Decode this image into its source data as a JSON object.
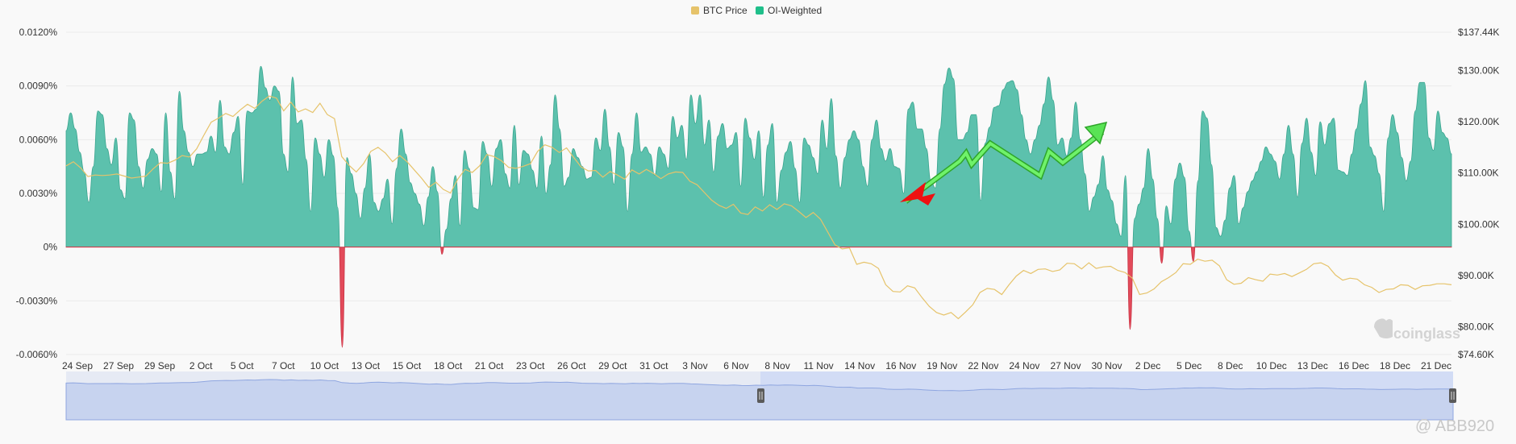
{
  "legend": [
    {
      "label": "BTC Price",
      "color": "#e6c36a"
    },
    {
      "label": "OI-Weighted",
      "color": "#1fbf8a"
    }
  ],
  "watermark": "coinglass",
  "credit": "@ ABB920",
  "chart_data": {
    "type": "area",
    "title": "",
    "left_axis": {
      "ticks": [
        "0.0120%",
        "0.0090%",
        "0.0060%",
        "0.0030%",
        "0%",
        "-0.0030%",
        "-0.0060%"
      ],
      "values": [
        0.012,
        0.009,
        0.006,
        0.003,
        0,
        -0.003,
        -0.006
      ],
      "range": [
        -0.006,
        0.012
      ]
    },
    "right_axis": {
      "ticks": [
        "$137.44K",
        "$130.00K",
        "$120.00K",
        "$110.00K",
        "$100.00K",
        "$90.00K",
        "$80.00K",
        "$74.60K"
      ],
      "values": [
        137.44,
        130,
        120,
        110,
        100,
        90,
        80,
        74.6
      ],
      "range": [
        74.6,
        137.44
      ]
    },
    "x_ticks": [
      "24 Sep",
      "27 Sep",
      "29 Sep",
      "2 Oct",
      "5 Oct",
      "7 Oct",
      "10 Oct",
      "13 Oct",
      "15 Oct",
      "18 Oct",
      "21 Oct",
      "23 Oct",
      "26 Oct",
      "29 Oct",
      "31 Oct",
      "3 Nov",
      "6 Nov",
      "8 Nov",
      "11 Nov",
      "14 Nov",
      "16 Nov",
      "19 Nov",
      "22 Nov",
      "24 Nov",
      "27 Nov",
      "30 Nov",
      "2 Dec",
      "5 Dec",
      "8 Dec",
      "10 Dec",
      "13 Dec",
      "16 Dec",
      "18 Dec",
      "21 Dec"
    ],
    "series": [
      {
        "name": "OI-Weighted",
        "kind": "area",
        "positive_color": "#5cc1ad",
        "negative_color": "#e34a5a",
        "values": [
          0.0065,
          0.0075,
          0.0066,
          0.0053,
          0.0042,
          0.0025,
          0.0045,
          0.0076,
          0.0074,
          0.0055,
          0.0046,
          0.0061,
          0.0032,
          0.0027,
          0.0075,
          0.0071,
          0.0045,
          0.0033,
          0.0049,
          0.0055,
          0.0052,
          0.0031,
          0.0075,
          0.0042,
          0.0027,
          0.0087,
          0.0065,
          0.0053,
          0.0045,
          0.0052,
          0.0052,
          0.0053,
          0.0062,
          0.0053,
          0.0082,
          0.0056,
          0.0052,
          0.0064,
          0.0073,
          0.0035,
          0.0076,
          0.0075,
          0.0077,
          0.0101,
          0.0089,
          0.0082,
          0.009,
          0.0087,
          0.0052,
          0.0042,
          0.0095,
          0.0069,
          0.0071,
          0.0049,
          0.002,
          0.0061,
          0.0052,
          0.0039,
          0.006,
          0.0051,
          0.0022,
          -0.0056,
          0.005,
          0.0041,
          0.003,
          0.0016,
          0.0033,
          0.0052,
          0.0025,
          0.002,
          0.0027,
          0.0038,
          0.0013,
          0.0044,
          0.0066,
          0.0052,
          0.0036,
          0.003,
          0.0024,
          0.0012,
          0.0028,
          0.0045,
          0.0031,
          -0.0004,
          0.001,
          0.0027,
          0.004,
          0.0012,
          0.0054,
          0.0044,
          0.0022,
          0.0021,
          0.0059,
          0.0052,
          0.0034,
          0.0055,
          0.006,
          0.0041,
          0.0033,
          0.0068,
          0.0035,
          0.0054,
          0.0052,
          0.0043,
          0.0033,
          0.0062,
          0.003,
          0.0046,
          0.0085,
          0.0066,
          0.0034,
          0.0039,
          0.0055,
          0.005,
          0.0045,
          0.0038,
          0.0039,
          0.0061,
          0.0054,
          0.0077,
          0.0056,
          0.0035,
          0.0064,
          0.0056,
          0.002,
          0.0052,
          0.0075,
          0.0053,
          0.0056,
          0.0052,
          0.004,
          0.0056,
          0.0052,
          0.0044,
          0.0073,
          0.0061,
          0.0068,
          0.0049,
          0.0085,
          0.0069,
          0.0085,
          0.0057,
          0.0071,
          0.0042,
          0.0062,
          0.0069,
          0.0055,
          0.0057,
          0.0064,
          0.0034,
          0.0072,
          0.0061,
          0.0049,
          0.0065,
          0.0028,
          0.0057,
          0.0069,
          0.0025,
          0.0043,
          0.0053,
          0.0059,
          0.0044,
          0.0025,
          0.0061,
          0.0057,
          0.005,
          0.0041,
          0.0071,
          0.0055,
          0.0083,
          0.0051,
          0.0033,
          0.005,
          0.006,
          0.0065,
          0.006,
          0.0045,
          0.0034,
          0.006,
          0.0071,
          0.0055,
          0.0048,
          0.0055,
          0.0045,
          0.0044,
          0.003,
          0.0077,
          0.0081,
          0.0066,
          0.0066,
          0.0055,
          0.0037,
          0.0033,
          0.0066,
          0.0091,
          0.01,
          0.0094,
          0.006,
          0.006,
          0.0064,
          0.0074,
          0.0074,
          0.0026,
          0.0058,
          0.0067,
          0.0078,
          0.0079,
          0.0088,
          0.0092,
          0.0093,
          0.0088,
          0.0074,
          0.006,
          0.0052,
          0.006,
          0.0068,
          0.008,
          0.0095,
          0.0082,
          0.0057,
          0.0061,
          0.0051,
          0.0061,
          0.0081,
          0.006,
          0.0041,
          0.002,
          0.0028,
          0.0035,
          0.0051,
          0.0032,
          0.0026,
          0.0013,
          0.0006,
          0.004,
          -0.0046,
          0.0016,
          0.0024,
          0.0033,
          0.0055,
          0.0038,
          0.0016,
          -0.0009,
          0.0023,
          0.0013,
          0.0038,
          0.0047,
          0.0039,
          0.0009,
          -0.0008,
          0.0037,
          0.0076,
          0.0072,
          0.0046,
          0.0011,
          0.0006,
          0.0015,
          0.0033,
          0.004,
          0.0013,
          0.0022,
          0.0031,
          0.0037,
          0.0042,
          0.0048,
          0.0056,
          0.0052,
          0.0048,
          0.0038,
          0.0052,
          0.0068,
          0.0052,
          0.0028,
          0.0058,
          0.0072,
          0.0053,
          0.004,
          0.007,
          0.0057,
          0.0069,
          0.0072,
          0.0043,
          0.0042,
          0.004,
          0.0052,
          0.0066,
          0.008,
          0.0093,
          0.0056,
          0.0051,
          0.0041,
          0.002,
          0.0061,
          0.0074,
          0.0064,
          0.005,
          0.0037,
          0.0048,
          0.0076,
          0.0092,
          0.0092,
          0.0061,
          0.0054,
          0.0076,
          0.0064,
          0.0061,
          0.0052
        ]
      },
      {
        "name": "BTC Price",
        "kind": "line",
        "color": "#e6c36a",
        "values": [
          111.4,
          112.2,
          111.0,
          109.3,
          109.6,
          109.5,
          109.6,
          109.8,
          109.4,
          109.0,
          109.2,
          109.4,
          110.8,
          112.0,
          111.9,
          112.5,
          113.4,
          113.1,
          114.7,
          117.4,
          119.9,
          120.7,
          121.6,
          121.0,
          122.3,
          123.4,
          122.6,
          124.0,
          125.0,
          124.6,
          122.1,
          123.8,
          121.9,
          122.5,
          121.8,
          123.6,
          121.4,
          120.6,
          113.2,
          111.5,
          110.2,
          111.8,
          114.2,
          115.0,
          113.9,
          112.2,
          113.4,
          112.2,
          110.6,
          109.0,
          107.2,
          108.2,
          106.8,
          106.1,
          108.8,
          110.7,
          110.1,
          111.4,
          113.6,
          113.2,
          112.4,
          111.1,
          110.9,
          111.3,
          111.8,
          114.2,
          115.5,
          115.0,
          114.0,
          114.9,
          113.0,
          111.2,
          110.4,
          110.5,
          109.2,
          110.3,
          109.6,
          108.8,
          110.6,
          109.8,
          110.7,
          109.9,
          108.9,
          109.8,
          110.2,
          110.1,
          108.4,
          107.7,
          106.2,
          104.7,
          103.7,
          103.1,
          103.9,
          102.2,
          101.9,
          103.4,
          102.6,
          103.8,
          102.9,
          104.0,
          103.6,
          102.5,
          101.3,
          102.3,
          101.0,
          98.5,
          96.0,
          95.2,
          95.4,
          92.2,
          92.6,
          92.3,
          91.4,
          88.2,
          86.9,
          86.8,
          88.0,
          87.6,
          85.7,
          84.0,
          82.8,
          82.3,
          82.8,
          81.6,
          82.9,
          84.3,
          86.7,
          87.5,
          87.3,
          86.3,
          88.2,
          89.9,
          91.0,
          90.4,
          91.2,
          91.3,
          90.8,
          91.1,
          92.4,
          92.3,
          91.3,
          92.5,
          91.4,
          91.7,
          91.8,
          91.0,
          90.6,
          89.5,
          86.3,
          86.6,
          87.4,
          88.8,
          89.6,
          90.6,
          92.3,
          92.2,
          93.2,
          92.8,
          93.0,
          91.9,
          89.2,
          88.3,
          88.5,
          89.6,
          89.2,
          88.9,
          90.3,
          90.1,
          90.4,
          89.8,
          90.5,
          91.2,
          92.3,
          92.5,
          91.8,
          90.1,
          89.1,
          89.5,
          89.3,
          88.2,
          87.7,
          86.7,
          87.3,
          87.4,
          88.2,
          88.1,
          87.3,
          88.0,
          88.1,
          88.4,
          88.4,
          88.2
        ]
      }
    ],
    "annotations": [
      "green zigzag arrow pointing up-right",
      "red arrow pointing down-left"
    ],
    "navigator": {
      "type": "area",
      "selection": "8 Nov - 21 Dec"
    }
  }
}
